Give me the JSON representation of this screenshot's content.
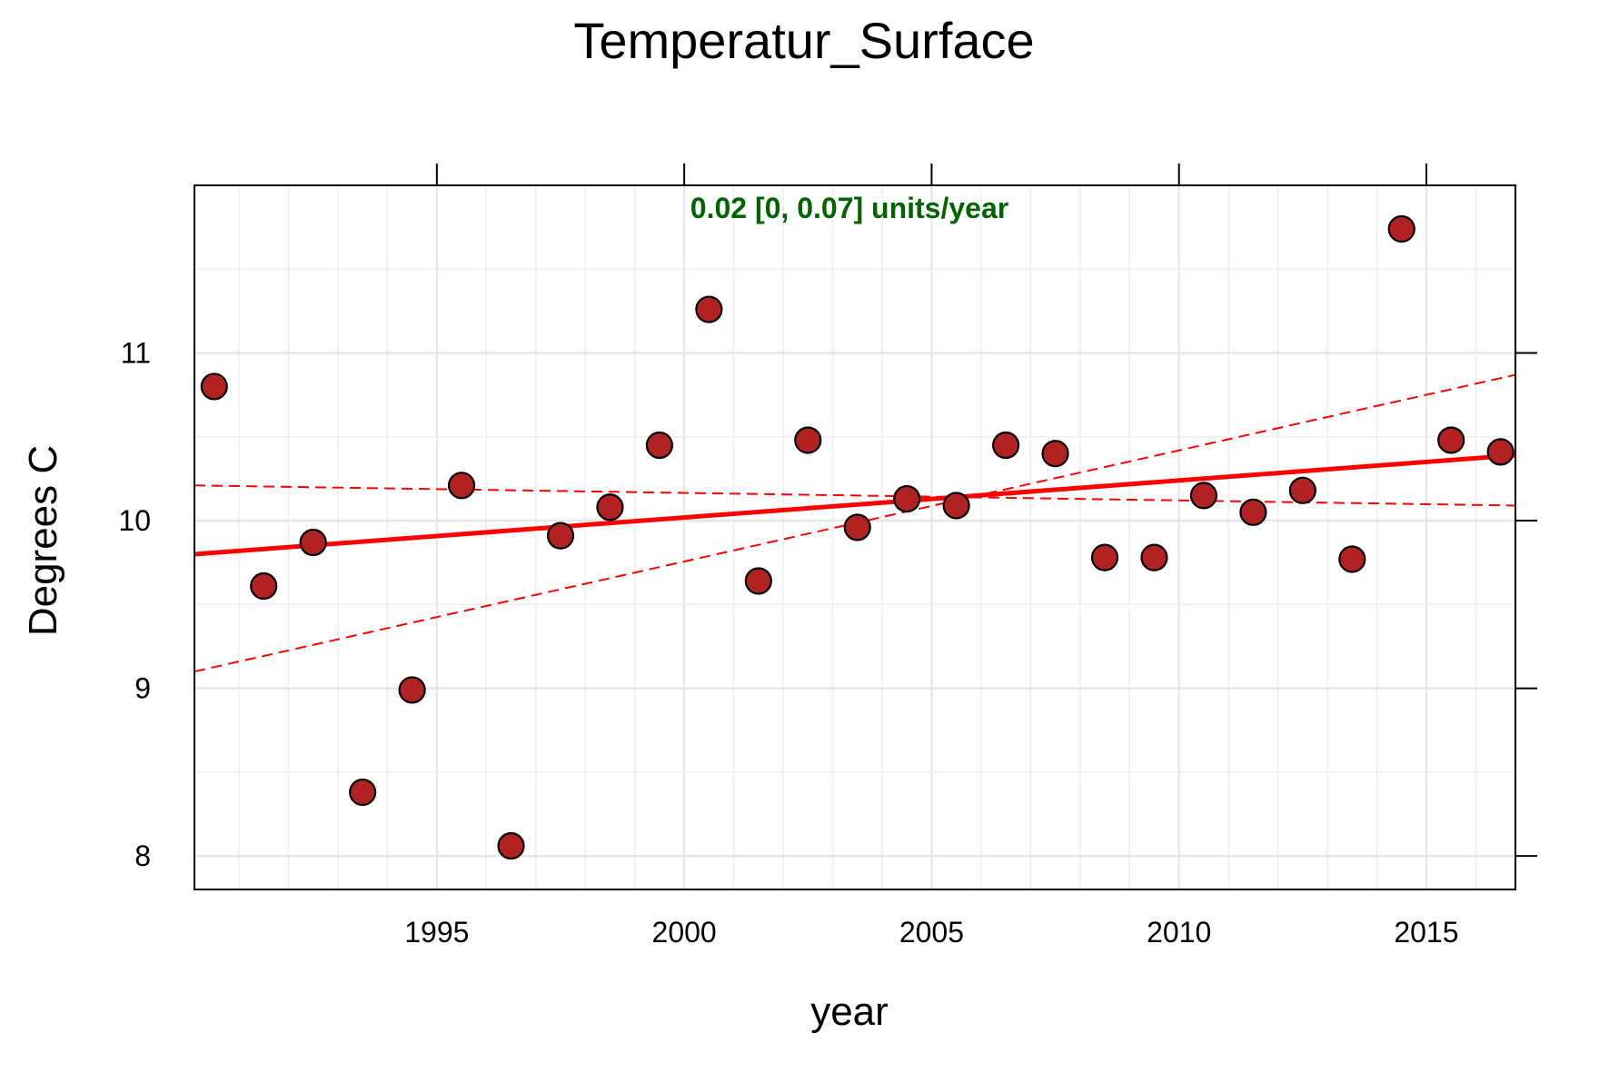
{
  "chart_data": {
    "type": "scatter",
    "title": "Temperatur_Surface",
    "xlabel": "year",
    "ylabel": "Degrees C",
    "annotation": "0.02 [0, 0.07] units/year",
    "annotation_color": "#006400",
    "xlim": [
      1990.1,
      2016.8
    ],
    "ylim": [
      7.8,
      12.0
    ],
    "x_ticks": [
      1995,
      2000,
      2005,
      2010,
      2015
    ],
    "y_ticks": [
      8,
      9,
      10,
      11
    ],
    "grid": true,
    "point_color": "#b22222",
    "line_color": "#ff0000",
    "points": [
      {
        "x": 1990.5,
        "y": 10.8
      },
      {
        "x": 1991.5,
        "y": 9.61
      },
      {
        "x": 1992.5,
        "y": 9.87
      },
      {
        "x": 1993.5,
        "y": 8.38
      },
      {
        "x": 1994.5,
        "y": 8.99
      },
      {
        "x": 1995.5,
        "y": 10.21
      },
      {
        "x": 1996.5,
        "y": 8.06
      },
      {
        "x": 1997.5,
        "y": 9.91
      },
      {
        "x": 1998.5,
        "y": 10.08
      },
      {
        "x": 1999.5,
        "y": 10.45
      },
      {
        "x": 2000.5,
        "y": 11.26
      },
      {
        "x": 2001.5,
        "y": 9.64
      },
      {
        "x": 2002.5,
        "y": 10.48
      },
      {
        "x": 2003.5,
        "y": 9.96
      },
      {
        "x": 2004.5,
        "y": 10.13
      },
      {
        "x": 2005.5,
        "y": 10.09
      },
      {
        "x": 2006.5,
        "y": 10.45
      },
      {
        "x": 2007.5,
        "y": 10.4
      },
      {
        "x": 2008.5,
        "y": 9.78
      },
      {
        "x": 2009.5,
        "y": 9.78
      },
      {
        "x": 2010.5,
        "y": 10.15
      },
      {
        "x": 2011.5,
        "y": 10.05
      },
      {
        "x": 2012.5,
        "y": 10.18
      },
      {
        "x": 2013.5,
        "y": 9.77
      },
      {
        "x": 2014.5,
        "y": 11.74
      },
      {
        "x": 2015.5,
        "y": 10.48
      },
      {
        "x": 2016.5,
        "y": 10.41
      }
    ],
    "trend": {
      "x": [
        1990.1,
        2016.8
      ],
      "y": [
        9.8,
        10.39
      ]
    },
    "ci_lower": {
      "x": [
        1990.1,
        2016.8
      ],
      "y": [
        10.21,
        10.09
      ]
    },
    "ci_upper": {
      "x": [
        1990.1,
        2016.8
      ],
      "y": [
        9.1,
        10.87
      ]
    }
  }
}
